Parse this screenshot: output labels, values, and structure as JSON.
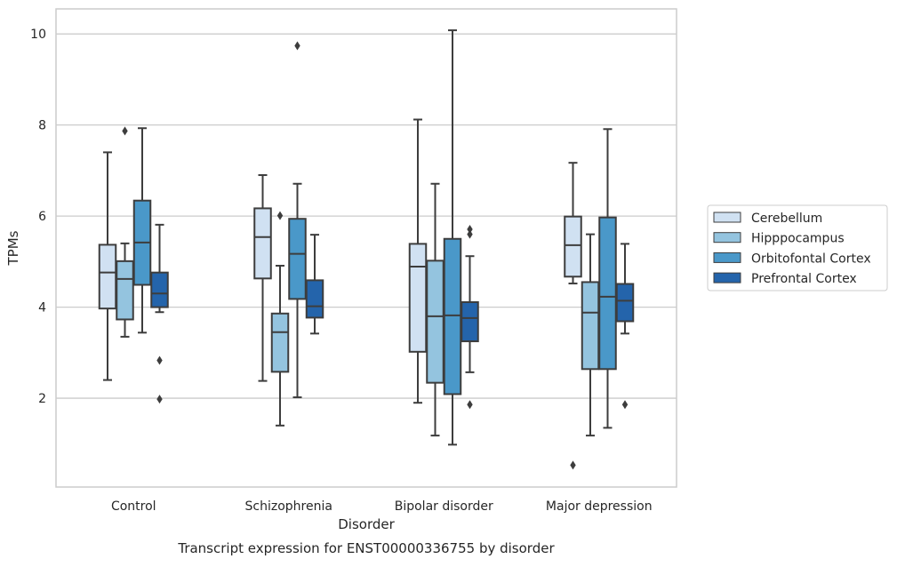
{
  "chart_data": {
    "type": "box",
    "caption": "Transcript expression for ENST00000336755 by disorder",
    "xlabel": "Disorder",
    "ylabel": "TPMs",
    "ylim": [
      0.05,
      10.55
    ],
    "yticks": [
      2,
      4,
      6,
      8,
      10
    ],
    "grid": "y",
    "legend_position": "right",
    "categories": [
      "Control",
      "Schizophrenia",
      "Bipolar disorder",
      "Major depression"
    ],
    "series": [
      {
        "name": "Cerebellum",
        "color": "#d0e1f2",
        "boxes": [
          {
            "whisker_low": 2.4,
            "q1": 3.97,
            "median": 4.76,
            "q3": 5.37,
            "whisker_high": 7.4,
            "outliers": []
          },
          {
            "whisker_low": 2.38,
            "q1": 4.63,
            "median": 5.54,
            "q3": 6.17,
            "whisker_high": 6.9,
            "outliers": []
          },
          {
            "whisker_low": 1.9,
            "q1": 3.02,
            "median": 4.89,
            "q3": 5.39,
            "whisker_high": 8.12,
            "outliers": []
          },
          {
            "whisker_low": 4.52,
            "q1": 4.67,
            "median": 5.36,
            "q3": 5.99,
            "whisker_high": 7.17,
            "outliers": [
              0.53
            ]
          }
        ]
      },
      {
        "name": "Hipppocampus",
        "color": "#94c4df",
        "boxes": [
          {
            "whisker_low": 3.35,
            "q1": 3.73,
            "median": 4.62,
            "q3": 5.01,
            "whisker_high": 5.4,
            "outliers": [
              7.87
            ]
          },
          {
            "whisker_low": 1.4,
            "q1": 2.58,
            "median": 3.45,
            "q3": 3.86,
            "whisker_high": 4.91,
            "outliers": [
              6.01
            ]
          },
          {
            "whisker_low": 1.18,
            "q1": 2.34,
            "median": 3.8,
            "q3": 5.02,
            "whisker_high": 6.71,
            "outliers": []
          },
          {
            "whisker_low": 1.18,
            "q1": 2.64,
            "median": 3.88,
            "q3": 4.55,
            "whisker_high": 5.6,
            "outliers": []
          }
        ]
      },
      {
        "name": "Orbitofontal Cortex",
        "color": "#4a98c9",
        "boxes": [
          {
            "whisker_low": 3.44,
            "q1": 4.49,
            "median": 5.42,
            "q3": 6.34,
            "whisker_high": 7.93,
            "outliers": []
          },
          {
            "whisker_low": 2.02,
            "q1": 4.18,
            "median": 5.17,
            "q3": 5.94,
            "whisker_high": 6.71,
            "outliers": [
              9.74
            ]
          },
          {
            "whisker_low": 0.98,
            "q1": 2.09,
            "median": 3.82,
            "q3": 5.5,
            "whisker_high": 10.08,
            "outliers": []
          },
          {
            "whisker_low": 1.35,
            "q1": 2.64,
            "median": 4.23,
            "q3": 5.97,
            "whisker_high": 7.91,
            "outliers": []
          }
        ]
      },
      {
        "name": "Prefrontal Cortex",
        "color": "#2464ab",
        "boxes": [
          {
            "whisker_low": 3.89,
            "q1": 4.0,
            "median": 4.3,
            "q3": 4.76,
            "whisker_high": 5.81,
            "outliers": [
              2.83,
              1.98
            ]
          },
          {
            "whisker_low": 3.42,
            "q1": 3.77,
            "median": 4.02,
            "q3": 4.59,
            "whisker_high": 5.59,
            "outliers": []
          },
          {
            "whisker_low": 2.57,
            "q1": 3.25,
            "median": 3.76,
            "q3": 4.11,
            "whisker_high": 5.12,
            "outliers": [
              5.6,
              5.71,
              1.86
            ]
          },
          {
            "whisker_low": 3.42,
            "q1": 3.69,
            "median": 4.14,
            "q3": 4.51,
            "whisker_high": 5.39,
            "outliers": [
              1.86
            ]
          }
        ]
      }
    ],
    "style": {
      "line_color": "#3d3d3d",
      "grid_color": "#cccccc",
      "frame_color": "#cccccc"
    }
  }
}
